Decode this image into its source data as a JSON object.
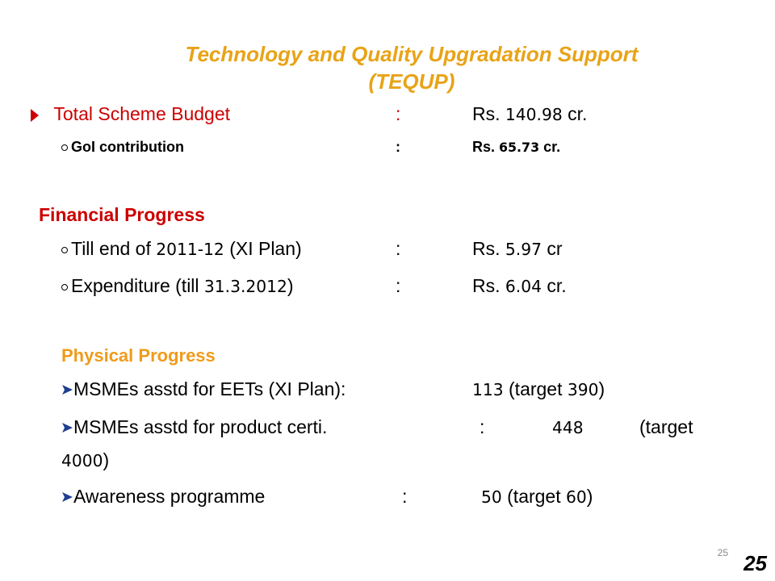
{
  "title": {
    "line1": "Technology and Quality Upgradation Support",
    "line2": "(TEQUP)"
  },
  "budget": {
    "label": "Total Scheme Budget",
    "colon": ":",
    "rs": "Rs. ",
    "amount": "140.98",
    "unit": " cr.",
    "gol": {
      "label": "GoI contribution",
      "colon": ":",
      "rs": "Rs. ",
      "amount": "65.73",
      "unit": " cr."
    }
  },
  "financial": {
    "heading": "Financial Progress",
    "items": [
      {
        "pre": "Till end of ",
        "num": "2011-12",
        "post": " (XI Plan)",
        "colon": ":",
        "rs": "Rs. ",
        "amount": "5.97",
        "unit": " cr"
      },
      {
        "pre": "Expenditure (till ",
        "num": "31.3.2012",
        "post": ")",
        "colon": ":",
        "rs": "Rs. ",
        "amount": "6.04",
        "unit": " cr."
      }
    ]
  },
  "physical": {
    "heading": "Physical Progress",
    "items": [
      {
        "label": "MSMEs asstd for EETs (XI Plan):",
        "value": "113",
        "target_pre": " (target ",
        "target": "390",
        "target_post": ")"
      },
      {
        "label": "MSMEs asstd for product certi.",
        "colon": ":",
        "value": "448",
        "target_pre": "(target",
        "target": "4000",
        "target_post": ")"
      },
      {
        "label": "Awareness programme",
        "colon": ":",
        "value": "50",
        "target_pre": " (target ",
        "target": "60",
        "target_post": ")"
      }
    ]
  },
  "page": {
    "small": "25",
    "big": "25"
  },
  "colors": {
    "title": "#e8a317",
    "red": "#cc0000",
    "orange": "#ef9b1a",
    "arrow_bullet": "#1f3f8f"
  },
  "icons": {
    "budget_bullet": "triangle-bullet-icon",
    "sub_bullet": "circle-bullet-icon",
    "physical_bullet": "arrow-bullet-icon"
  }
}
